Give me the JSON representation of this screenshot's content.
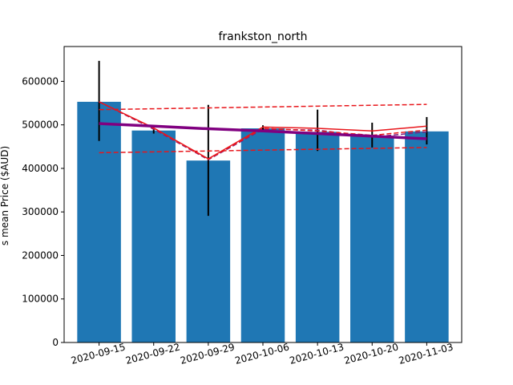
{
  "chart_data": {
    "type": "bar",
    "title": "frankston_north",
    "xlabel": "",
    "ylabel": "s mean Price ($AUD)",
    "ylim": [
      0,
      680000
    ],
    "yticks": [
      0,
      100000,
      200000,
      300000,
      400000,
      500000,
      600000
    ],
    "ytick_labels": [
      "0",
      "100000",
      "200000",
      "300000",
      "400000",
      "500000",
      "600000"
    ],
    "categories": [
      "2020-09-15",
      "2020-09-22",
      "2020-09-29",
      "2020-10-06",
      "2020-10-13",
      "2020-10-20",
      "2020-11-03"
    ],
    "values": [
      553000,
      487000,
      418000,
      492000,
      484000,
      475000,
      485000
    ],
    "error_low": [
      463000,
      480000,
      291000,
      485000,
      440000,
      448000,
      455000
    ],
    "error_high": [
      647000,
      493000,
      546000,
      499000,
      535000,
      505000,
      518000
    ],
    "bar_color": "#1f77b4",
    "lines": [
      {
        "values": [
          553000,
          493000,
          422000,
          495000,
          492000,
          486000,
          497000
        ],
        "color": "#e8161b",
        "style": "solid",
        "width": 1.5
      },
      {
        "values": [
          553000,
          490000,
          420000,
          490000,
          488000,
          472000,
          484000
        ],
        "color": "#7f1e7f",
        "style": "dashed",
        "width": 1.5
      },
      {
        "values": [
          553000,
          492000,
          421000,
          492000,
          486000,
          476000,
          488000
        ],
        "color": "#e8161b",
        "style": "dashed",
        "width": 1.5
      },
      {
        "values": [
          503000,
          497000,
          491000,
          486000,
          480000,
          474000,
          468000
        ],
        "color": "#800080",
        "style": "solid",
        "width": 3.5
      },
      {
        "values": [
          535000,
          537000,
          539000,
          541000,
          543000,
          545000,
          547000
        ],
        "color": "#e8161b",
        "style": "dashed",
        "width": 1.5
      },
      {
        "values": [
          436000,
          438000,
          440000,
          442000,
          444000,
          446000,
          448000
        ],
        "color": "#e8161b",
        "style": "dashed",
        "width": 1.5
      }
    ],
    "grid": false,
    "legend": "none"
  }
}
